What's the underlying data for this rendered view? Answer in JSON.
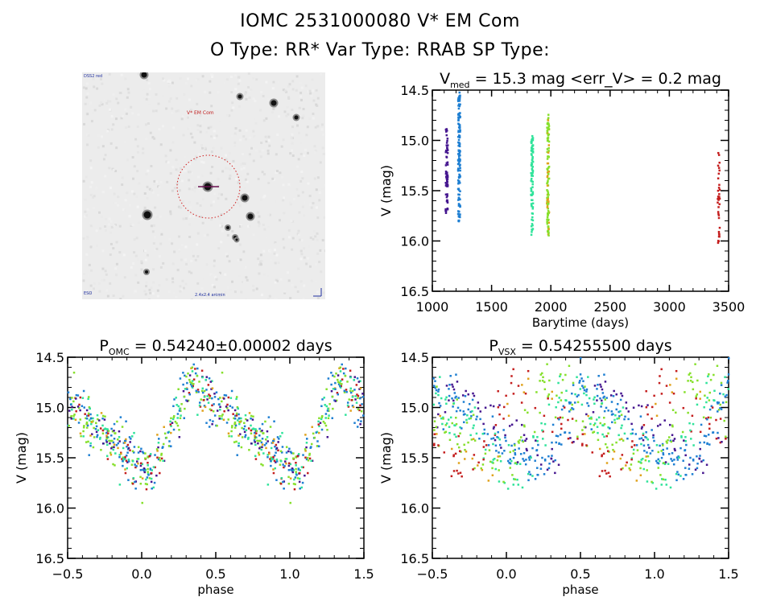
{
  "header": {
    "line1": "IOMC 2531000080    V* EM Com",
    "line2": "O Type: RR*  Var Type: RRAB  SP Type:"
  },
  "sky_image": {
    "target_label": "V* EM Com",
    "corner_top_left": "DSS2 red",
    "corner_bottom_left": "ESO",
    "bottom_center": "2.4x2.4 arcmin",
    "marker": "red dotted circle around target star"
  },
  "colors": {
    "epoch1": "#45168f",
    "epoch2": "#1e7fd2",
    "epoch3": "#2fe39a",
    "epoch4": "#86e02c",
    "epoch4b": "#e0a21c",
    "epoch5": "#c41e1e",
    "extra": "#3a0a6e"
  },
  "chart_data": [
    {
      "type": "scatter",
      "title": "V_med = 15.3 mag <err_V> = 0.2 mag",
      "title_parts": {
        "main": "V",
        "sub": "med",
        "rest": " = 15.3 mag <err_V> = 0.2 mag"
      },
      "xlabel": "Barytime (days)",
      "ylabel": "V (mag)",
      "xlim": [
        1000,
        3500
      ],
      "ylim": [
        16.5,
        14.5
      ],
      "xticks": [
        "1000",
        "1500",
        "2000",
        "2500",
        "3000",
        "3500"
      ],
      "yticks": [
        "14.5",
        "15.0",
        "15.5",
        "16.0",
        "16.5"
      ],
      "series": [
        {
          "name": "epoch1",
          "x": 1120,
          "ymin": 14.88,
          "ymax": 15.72,
          "n": 70
        },
        {
          "name": "epoch2",
          "x": 1225,
          "ymin": 14.52,
          "ymax": 15.83,
          "n": 130
        },
        {
          "name": "epoch3",
          "x": 1840,
          "ymin": 14.92,
          "ymax": 15.94,
          "n": 80
        },
        {
          "name": "epoch4",
          "x": 1975,
          "ymin": 14.74,
          "ymax": 15.95,
          "n": 110
        },
        {
          "name": "epoch5",
          "x": 3415,
          "ymin": 15.1,
          "ymax": 16.02,
          "n": 35
        }
      ]
    },
    {
      "type": "scatter",
      "title": "P_OMC = 0.54240±0.00002 days",
      "title_parts": {
        "main": "P",
        "sub": "OMC",
        "rest": " = 0.54240±0.00002 days"
      },
      "xlabel": "phase",
      "ylabel": "V (mag)",
      "xlim": [
        -0.5,
        1.5
      ],
      "ylim": [
        16.5,
        14.5
      ],
      "xticks": [
        "-0.5",
        "0.0",
        "0.5",
        "1.0",
        "1.5"
      ],
      "yticks": [
        "14.5",
        "15.0",
        "15.5",
        "16.0",
        "16.5"
      ],
      "period_days": 0.5424,
      "light_curve": {
        "max_phase": 0.32,
        "max_mag": 14.75,
        "min_mag": 15.65,
        "scatter": 0.12
      }
    },
    {
      "type": "scatter",
      "title": "P_VSX = 0.54255500 days",
      "title_parts": {
        "main": "P",
        "sub": "VSX",
        "rest": " = 0.54255500 days"
      },
      "xlabel": "phase",
      "ylabel": "V (mag)",
      "xlim": [
        -0.5,
        1.5
      ],
      "ylim": [
        16.5,
        14.5
      ],
      "xticks": [
        "-0.5",
        "0.0",
        "0.5",
        "1.0",
        "1.5"
      ],
      "yticks": [
        "14.5",
        "15.0",
        "15.5",
        "16.0",
        "16.5"
      ],
      "period_days": 0.542555,
      "light_curve": {
        "max_phase": 0.32,
        "max_mag": 14.75,
        "min_mag": 15.65,
        "scatter": 0.12
      }
    }
  ]
}
